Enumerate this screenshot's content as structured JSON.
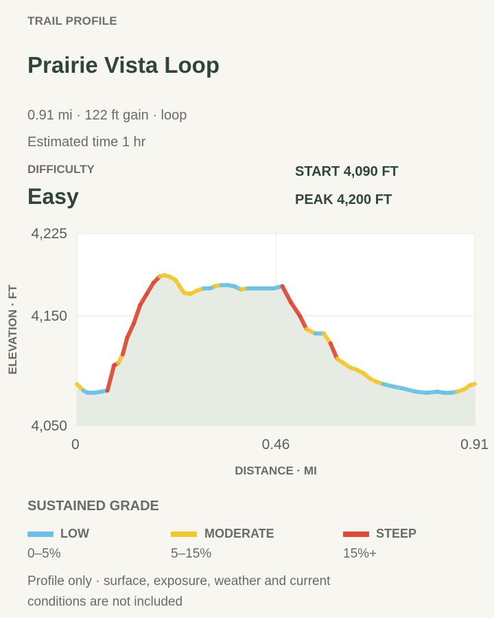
{
  "header": {
    "eyebrow": "TRAIL PROFILE",
    "title": "Prairie Vista Loop",
    "summary": "0.91 mi · 122 ft gain · loop",
    "estimate": "Estimated time 1 hr"
  },
  "difficulty": {
    "label": "DIFFICULTY",
    "value": "Easy"
  },
  "stats": {
    "start": "START 4,090 FT",
    "peak": "PEAK 4,200 FT"
  },
  "legend": {
    "title": "SUSTAINED GRADE",
    "items": [
      {
        "name": "LOW",
        "range": "0–5%",
        "color": "#6cc0e5"
      },
      {
        "name": "MODERATE",
        "range": "5–15%",
        "color": "#f0c832"
      },
      {
        "name": "STEEP",
        "range": "15%+",
        "color": "#db4a35"
      }
    ]
  },
  "footnote": "Profile only · surface, exposure, weather and current conditions are not included",
  "chart_data": {
    "type": "area",
    "xlabel": "DISTANCE · MI",
    "ylabel": "ELEVATION · FT",
    "xlim": [
      0,
      0.91
    ],
    "ylim": [
      4050,
      4225
    ],
    "xticks": [
      0,
      0.455,
      0.91
    ],
    "xtick_labels": [
      "0",
      "0.46",
      "0.91"
    ],
    "yticks": [
      4050,
      4150,
      4225
    ],
    "ytick_labels": [
      "4,050",
      "4,150",
      "4,225"
    ],
    "grid": true,
    "fill_color": "#e6ece3",
    "series": [
      {
        "x": [
          0,
          0.015,
          0.025,
          0.04,
          0.055,
          0.07,
          0.085,
          0.095,
          0.105,
          0.115,
          0.13,
          0.145,
          0.16,
          0.175,
          0.19,
          0.2,
          0.21,
          0.225,
          0.235,
          0.245,
          0.26,
          0.275,
          0.29,
          0.305,
          0.315,
          0.33,
          0.345,
          0.36,
          0.375,
          0.39,
          0.4,
          0.41,
          0.43,
          0.45,
          0.46,
          0.47,
          0.49,
          0.51,
          0.525,
          0.545,
          0.565,
          0.58,
          0.595,
          0.61,
          0.625,
          0.64,
          0.655,
          0.67,
          0.685,
          0.7,
          0.72,
          0.745,
          0.775,
          0.8,
          0.825,
          0.84,
          0.855,
          0.87,
          0.885,
          0.9,
          0.91
        ],
        "y": [
          4088,
          4082,
          4080,
          4080,
          4081,
          4082,
          4105,
          4107,
          4115,
          4130,
          4143,
          4160,
          4170,
          4180,
          4186,
          4187,
          4186,
          4183,
          4177,
          4171,
          4170,
          4173,
          4175,
          4175,
          4177,
          4178,
          4178,
          4177,
          4174,
          4175,
          4175,
          4175,
          4175,
          4175,
          4176,
          4177,
          4162,
          4150,
          4138,
          4134,
          4134,
          4125,
          4111,
          4107,
          4103,
          4101,
          4098,
          4093,
          4090,
          4088,
          4086,
          4084,
          4081,
          4080,
          4081,
          4080,
          4080,
          4081,
          4083,
          4087,
          4088
        ],
        "grades": [
          "moderate",
          "low",
          "low",
          "low",
          "low",
          "steep",
          "steep",
          "moderate",
          "steep",
          "steep",
          "steep",
          "steep",
          "steep",
          "steep",
          "moderate",
          "moderate",
          "moderate",
          "moderate",
          "moderate",
          "moderate",
          "moderate",
          "moderate",
          "low",
          "low",
          "moderate",
          "low",
          "low",
          "low",
          "moderate",
          "low",
          "low",
          "low",
          "low",
          "low",
          "low",
          "steep",
          "steep",
          "steep",
          "moderate",
          "low",
          "moderate",
          "steep",
          "moderate",
          "moderate",
          "moderate",
          "moderate",
          "moderate",
          "moderate",
          "moderate",
          "low",
          "low",
          "low",
          "low",
          "low",
          "low",
          "low",
          "low",
          "moderate",
          "moderate",
          "moderate"
        ]
      }
    ]
  }
}
